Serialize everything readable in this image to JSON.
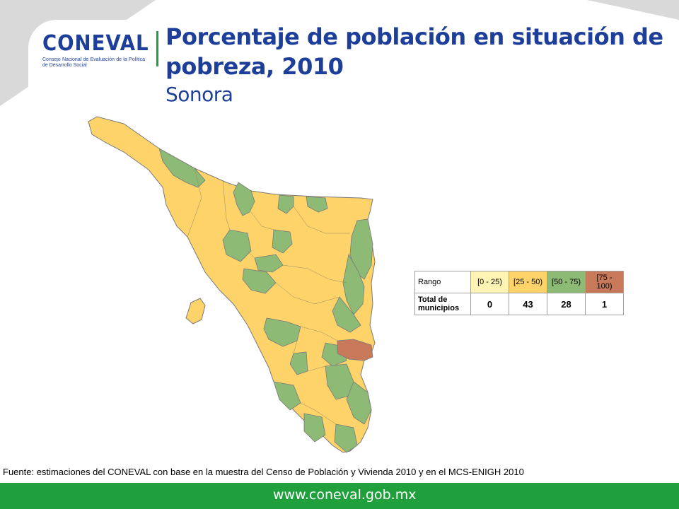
{
  "logo": {
    "name": "CONEVAL",
    "subtitle": "Consejo Nacional de Evaluación de la Política de Desarrollo Social"
  },
  "title": "Porcentaje de población en situación de pobreza, 2010",
  "subtitle": "Sonora",
  "legend": {
    "row_label_range": "Rango",
    "row_label_total": "Total de municipios",
    "categories": [
      {
        "range": "[0 - 25)",
        "count": "0",
        "color": "#fff4b3"
      },
      {
        "range": "[25 - 50)",
        "count": "43",
        "color": "#fdd36a"
      },
      {
        "range": "[50 - 75)",
        "count": "28",
        "color": "#8dbb75"
      },
      {
        "range": "[75 - 100)",
        "count": "1",
        "color": "#c8795a"
      }
    ]
  },
  "map": {
    "region": "Sonora",
    "colors": {
      "range_25_50": "#fdd36a",
      "range_50_75": "#8dbb75",
      "range_75_100": "#c8795a",
      "border": "#7a7a7a"
    }
  },
  "source": "Fuente: estimaciones del CONEVAL con base en la muestra del Censo de Población y Vivienda 2010 y en el MCS-ENIGH 2010",
  "footer": {
    "url": "www.coneval.gob.mx",
    "bar_color": "#1fa03c"
  }
}
